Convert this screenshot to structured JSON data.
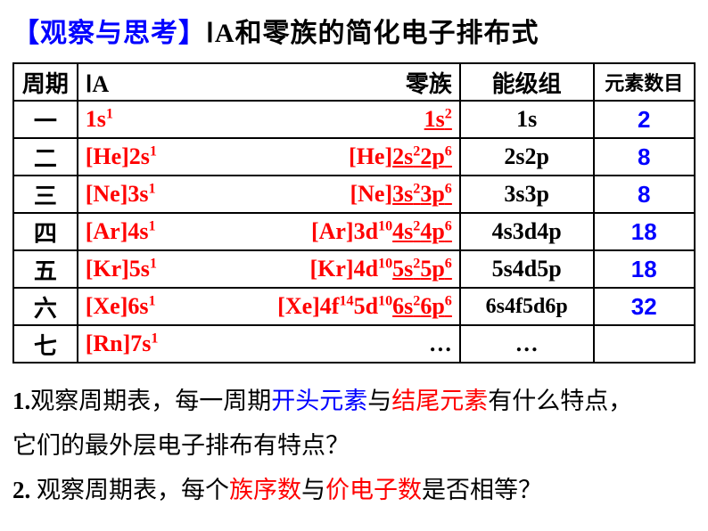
{
  "title": {
    "bracket": "【观察与思考】",
    "main_prefix": "Ⅰ",
    "main_rest": "A和零族的简化电子排布式"
  },
  "headers": {
    "period": "周期",
    "ia": "ⅠA",
    "zero": "零族",
    "level": "能级组",
    "count": "元素数目"
  },
  "rows": [
    {
      "period": "一",
      "ia_base": "1s",
      "ia_sup": "1",
      "zero_inner": "",
      "zero_ul_base1": "1s",
      "zero_ul_sup1": "2",
      "zero_ul_base2": "",
      "zero_ul_sup2": "",
      "level": "1s",
      "count": "2"
    },
    {
      "period": "二",
      "ia_base": "[He]2s",
      "ia_sup": "1",
      "zero_inner": "[He]",
      "zero_ul_base1": "2s",
      "zero_ul_sup1": "2",
      "zero_ul_base2": "2p",
      "zero_ul_sup2": "6",
      "level": "2s2p",
      "count": "8"
    },
    {
      "period": "三",
      "ia_base": "[Ne]3s",
      "ia_sup": "1",
      "zero_inner": "[Ne]",
      "zero_ul_base1": "3s",
      "zero_ul_sup1": "2",
      "zero_ul_base2": "3p",
      "zero_ul_sup2": "6",
      "level": "3s3p",
      "count": "8"
    },
    {
      "period": "四",
      "ia_base": "[Ar]4s",
      "ia_sup": "1",
      "zero_inner_a": "[Ar]3d",
      "zero_inner_sup": "10",
      "zero_ul_base1": "4s",
      "zero_ul_sup1": "2",
      "zero_ul_base2": "4p",
      "zero_ul_sup2": "6",
      "level": "4s3d4p",
      "count": "18"
    },
    {
      "period": "五",
      "ia_base": "[Kr]5s",
      "ia_sup": "1",
      "zero_inner_a": "[Kr]4d",
      "zero_inner_sup": "10",
      "zero_ul_base1": "5s",
      "zero_ul_sup1": "2",
      "zero_ul_base2": "5p",
      "zero_ul_sup2": "6",
      "level": "5s4d5p",
      "count": "18"
    },
    {
      "period": "六",
      "ia_base": "[Xe]6s",
      "ia_sup": "1",
      "zero_inner_a": "[Xe]4f",
      "zero_inner_sup": "14",
      "zero_inner_b": "5d",
      "zero_inner_sup2": "10",
      "zero_ul_base1": "6s",
      "zero_ul_sup1": "2",
      "zero_ul_base2": "6p",
      "zero_ul_sup2": "6",
      "level": "6s4f5d6p",
      "count": "32"
    },
    {
      "period": "七",
      "ia_base": "[Rn]7s",
      "ia_sup": "1",
      "zero_raw": "…",
      "level": "…",
      "count": ""
    }
  ],
  "q1": {
    "prefix": "1.",
    "a": "观察周期表，每一周期",
    "blue1": "开头元素",
    "b": "与",
    "red1": "结尾元素",
    "c": "有什么特点，",
    "d": "它们的最外层电子排布有特点？"
  },
  "q2": {
    "prefix": "2. ",
    "a": "观察周期表，每个",
    "red1": "族序数",
    "b": "与",
    "red2": "价电子数",
    "c": "是否相等？"
  }
}
